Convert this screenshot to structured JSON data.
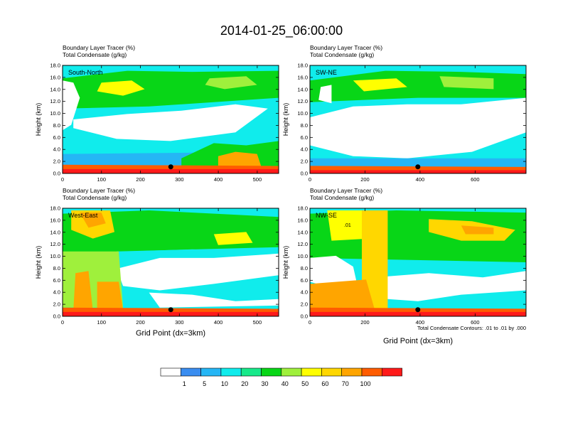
{
  "figure": {
    "title": "2014-01-25_06:00:00",
    "field_label_1": "Boundary Layer Tracer",
    "field_unit_1": "(%)",
    "field_label_2": "Total Condensate",
    "field_unit_2": "(g/kg)",
    "ylabel": "Height (km)",
    "xlabel": "Grid Point (dx=3km)",
    "contour_note": "Total Condensate Contours: .01 to .01 by .000"
  },
  "colorbar": {
    "labels": [
      "1",
      "5",
      "10",
      "20",
      "30",
      "40",
      "50",
      "60",
      "70",
      "100"
    ],
    "colors": [
      "#ffffff",
      "#3a8df0",
      "#25b6f5",
      "#10ecec",
      "#17e98a",
      "#08d617",
      "#9ff03c",
      "#ffff00",
      "#ffd700",
      "#ffa500",
      "#ff5c00",
      "#ff1a1a"
    ]
  },
  "chart_data": [
    {
      "type": "heatmap",
      "panel_label": "South-North",
      "xlim": [
        0,
        555
      ],
      "ylim": [
        0,
        18
      ],
      "xticks": [
        "0",
        "100",
        "200",
        "300",
        "400",
        "500"
      ],
      "yticks": [
        "0.0",
        "2.0",
        "4.0",
        "6.0",
        "8.0",
        "10.0",
        "12.0",
        "14.0",
        "16.0",
        "18.0"
      ],
      "marker": {
        "x": 278,
        "y": 1.1
      },
      "contour_labels": []
    },
    {
      "type": "heatmap",
      "panel_label": "SW-NE",
      "xlim": [
        0,
        785
      ],
      "ylim": [
        0,
        18
      ],
      "xticks": [
        "0",
        "200",
        "400",
        "600"
      ],
      "yticks": [
        "0.0",
        "2.0",
        "4.0",
        "6.0",
        "8.0",
        "10.0",
        "12.0",
        "14.0",
        "16.0",
        "18.0"
      ],
      "marker": {
        "x": 392,
        "y": 1.1
      },
      "contour_labels": []
    },
    {
      "type": "heatmap",
      "panel_label": "West-East",
      "xlim": [
        0,
        555
      ],
      "ylim": [
        0,
        18
      ],
      "xticks": [
        "0",
        "100",
        "200",
        "300",
        "400",
        "500"
      ],
      "yticks": [
        "0.0",
        "2.0",
        "4.0",
        "6.0",
        "8.0",
        "10.0",
        "12.0",
        "14.0",
        "16.0",
        "18.0"
      ],
      "marker": {
        "x": 278,
        "y": 1.1
      },
      "contour_labels": []
    },
    {
      "type": "heatmap",
      "panel_label": "NW-SE",
      "xlim": [
        0,
        785
      ],
      "ylim": [
        0,
        18
      ],
      "xticks": [
        "0",
        "200",
        "400",
        "600"
      ],
      "yticks": [
        "0.0",
        "2.0",
        "4.0",
        "6.0",
        "8.0",
        "10.0",
        "12.0",
        "14.0",
        "16.0",
        "18.0"
      ],
      "marker": {
        "x": 392,
        "y": 1.1
      },
      "contour_labels": [
        ".01"
      ]
    }
  ]
}
